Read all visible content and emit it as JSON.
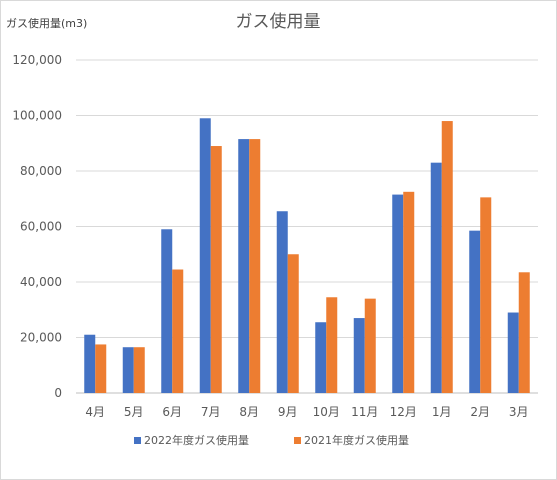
{
  "chart_data": {
    "type": "bar",
    "title": "ガス使用量",
    "unit_label": "ガス使用量(m3)",
    "xlabel": "",
    "ylabel": "",
    "categories": [
      "4月",
      "5月",
      "6月",
      "7月",
      "8月",
      "9月",
      "10月",
      "11月",
      "12月",
      "1月",
      "2月",
      "3月"
    ],
    "series": [
      {
        "name": "2022年度ガス使用量",
        "color": "#4472C4",
        "values": [
          21000,
          16500,
          59000,
          99000,
          91500,
          65500,
          25500,
          27000,
          71500,
          83000,
          58500,
          29000
        ]
      },
      {
        "name": "2021年度ガス使用量",
        "color": "#ED7D31",
        "values": [
          17500,
          16500,
          44500,
          89000,
          91500,
          50000,
          34500,
          34000,
          72500,
          98000,
          70500,
          43500
        ]
      }
    ],
    "ylim": [
      0,
      120000
    ],
    "yticks": [
      0,
      20000,
      40000,
      60000,
      80000,
      100000,
      120000
    ],
    "ytick_labels": [
      "0",
      "20,000",
      "40,000",
      "60,000",
      "80,000",
      "100,000",
      "120,000"
    ],
    "grid": true,
    "gridline_color": "#d9d9d9",
    "legend_position": "bottom"
  }
}
